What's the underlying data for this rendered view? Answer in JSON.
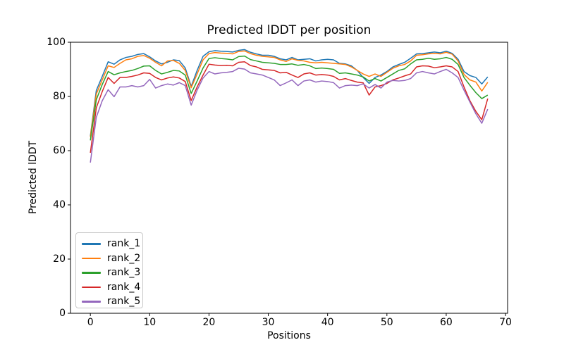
{
  "chart_data": {
    "type": "line",
    "title": "Predicted lDDT per position",
    "xlabel": "Positions",
    "ylabel": "Predicted lDDT",
    "xlim": [
      -3.35,
      70.35
    ],
    "ylim": [
      0,
      100
    ],
    "xticks": [
      0,
      10,
      20,
      30,
      40,
      50,
      60,
      70
    ],
    "yticks": [
      0,
      20,
      40,
      60,
      80,
      100
    ],
    "grid": false,
    "legend_position": "lower left",
    "line_width": 1.5,
    "x": [
      0,
      1,
      2,
      3,
      4,
      5,
      6,
      7,
      8,
      9,
      10,
      11,
      12,
      13,
      14,
      15,
      16,
      17,
      18,
      19,
      20,
      21,
      22,
      23,
      24,
      25,
      26,
      27,
      28,
      29,
      30,
      31,
      32,
      33,
      34,
      35,
      36,
      37,
      38,
      39,
      40,
      41,
      42,
      43,
      44,
      45,
      46,
      47,
      48,
      49,
      50,
      51,
      52,
      53,
      54,
      55,
      56,
      57,
      58,
      59,
      60,
      61,
      62,
      63,
      64,
      65,
      66,
      67
    ],
    "series": [
      {
        "name": "rank_1",
        "color": "#1f77b4",
        "values": [
          65.4,
          82.2,
          87.4,
          92.8,
          91.9,
          93.5,
          94.4,
          94.8,
          95.5,
          95.8,
          94.6,
          93.1,
          92.0,
          92.6,
          93.5,
          93.2,
          90.5,
          83.7,
          89.6,
          94.8,
          96.5,
          96.9,
          96.7,
          96.6,
          96.4,
          97.0,
          97.3,
          96.3,
          95.7,
          95.2,
          95.2,
          94.8,
          93.9,
          93.5,
          94.4,
          93.5,
          93.7,
          93.9,
          93.1,
          93.5,
          93.7,
          93.5,
          92.2,
          92.0,
          91.3,
          89.6,
          87.0,
          84.8,
          87.0,
          87.9,
          89.2,
          90.9,
          91.8,
          92.6,
          94.1,
          95.7,
          95.8,
          96.1,
          96.4,
          96.1,
          96.7,
          95.9,
          93.7,
          89.2,
          87.7,
          87.0,
          84.6,
          87.2
        ]
      },
      {
        "name": "rank_2",
        "color": "#ff7f0e",
        "values": [
          65.0,
          80.9,
          86.1,
          91.3,
          90.7,
          92.2,
          93.5,
          93.9,
          94.8,
          95.1,
          94.1,
          92.6,
          91.3,
          93.1,
          93.3,
          92.2,
          89.6,
          83.2,
          88.3,
          93.5,
          95.8,
          96.2,
          96.0,
          95.9,
          95.7,
          96.6,
          96.8,
          95.8,
          95.2,
          94.8,
          94.6,
          94.4,
          93.5,
          92.9,
          93.9,
          93.3,
          93.1,
          92.6,
          92.4,
          92.6,
          92.4,
          92.2,
          92.0,
          91.8,
          90.9,
          89.6,
          88.3,
          87.4,
          88.3,
          87.4,
          88.9,
          90.4,
          91.3,
          91.8,
          93.1,
          95.2,
          95.4,
          95.7,
          95.9,
          95.7,
          96.3,
          95.6,
          93.1,
          88.1,
          86.1,
          85.3,
          82.0,
          85.2
        ]
      },
      {
        "name": "rank_3",
        "color": "#2ca02c",
        "values": [
          63.8,
          78.8,
          84.4,
          89.2,
          88.0,
          88.7,
          89.2,
          89.6,
          90.3,
          91.2,
          91.3,
          89.6,
          88.3,
          88.9,
          89.6,
          89.4,
          87.9,
          81.1,
          85.7,
          90.5,
          94.0,
          94.3,
          94.0,
          93.8,
          93.5,
          94.7,
          94.9,
          93.6,
          93.1,
          92.6,
          92.4,
          92.2,
          91.8,
          91.8,
          92.0,
          91.5,
          91.8,
          91.3,
          90.3,
          90.5,
          90.3,
          90.0,
          88.5,
          88.7,
          88.3,
          87.9,
          87.2,
          85.7,
          86.6,
          85.7,
          87.0,
          88.3,
          89.6,
          90.2,
          92.0,
          93.5,
          93.7,
          94.1,
          93.7,
          93.9,
          94.4,
          93.7,
          91.8,
          87.0,
          84.1,
          81.4,
          79.2,
          80.5
        ]
      },
      {
        "name": "rank_4",
        "color": "#d62728",
        "values": [
          59.2,
          75.8,
          81.8,
          87.0,
          84.8,
          87.0,
          87.0,
          87.4,
          87.9,
          88.7,
          88.5,
          87.0,
          86.1,
          86.8,
          87.2,
          86.8,
          85.5,
          78.5,
          83.5,
          87.9,
          91.9,
          91.6,
          91.4,
          91.5,
          91.3,
          92.6,
          92.8,
          91.4,
          90.9,
          90.0,
          89.8,
          89.6,
          88.7,
          88.9,
          87.9,
          87.0,
          88.3,
          88.7,
          87.9,
          88.1,
          87.9,
          87.4,
          86.1,
          86.6,
          85.9,
          85.3,
          85.0,
          80.5,
          83.5,
          84.0,
          84.8,
          86.1,
          86.8,
          87.6,
          88.3,
          90.9,
          91.3,
          91.2,
          90.6,
          90.9,
          91.3,
          90.9,
          89.2,
          83.5,
          78.4,
          74.5,
          71.4,
          79.2
        ]
      },
      {
        "name": "rank_5",
        "color": "#9467bd",
        "values": [
          55.6,
          72.3,
          78.4,
          82.5,
          79.9,
          83.5,
          83.5,
          84.0,
          83.5,
          84.0,
          86.3,
          83.1,
          84.0,
          84.6,
          84.2,
          85.1,
          84.0,
          76.8,
          82.3,
          86.8,
          89.2,
          88.3,
          88.7,
          88.9,
          89.2,
          90.4,
          90.1,
          88.7,
          88.3,
          87.9,
          87.0,
          86.1,
          84.0,
          85.0,
          86.1,
          84.0,
          85.7,
          86.1,
          85.3,
          85.7,
          85.5,
          85.1,
          83.1,
          84.0,
          84.2,
          84.0,
          84.6,
          83.1,
          84.4,
          83.1,
          85.3,
          85.9,
          85.7,
          85.9,
          86.6,
          88.7,
          89.2,
          88.7,
          88.3,
          89.2,
          90.0,
          88.7,
          87.0,
          82.3,
          77.9,
          73.6,
          70.1,
          75.3
        ]
      }
    ]
  }
}
